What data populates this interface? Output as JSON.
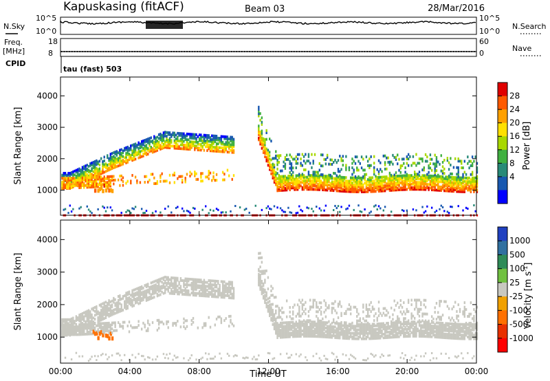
{
  "header": {
    "station": "Kapuskasing (fitACF)",
    "beam": "Beam 03",
    "date": "28/Mar/2016"
  },
  "noise_panel": {
    "left_label": "N.Sky",
    "left_ticks": [
      "10^5",
      "10^0"
    ],
    "right_ticks": [
      "10^5",
      "10^0"
    ],
    "right_label": "N.Search"
  },
  "freq_panel": {
    "left_label_1": "Freq.",
    "left_label_2": "[MHz]",
    "left_ticks": [
      "18",
      "8"
    ],
    "right_ticks": [
      "60",
      "0"
    ],
    "right_label": "Nave",
    "cpid_label": "CPID",
    "cpid_value": "tau (fast) 503"
  },
  "chart_data": [
    {
      "type": "heatmap",
      "name": "power",
      "ylabel": "Slant Range [km]",
      "yticks": [
        1000,
        2000,
        3000,
        4000
      ],
      "xlabels": [
        "00:00",
        "04:00",
        "08:00",
        "12:00",
        "16:00",
        "20:00",
        "00:00"
      ],
      "x_hours": [
        0,
        4,
        8,
        12,
        16,
        20,
        24
      ],
      "ylim": [
        200,
        4600
      ],
      "colorbar": {
        "label": "Power [dB]",
        "ticks": [
          "28",
          "24",
          "20",
          "16",
          "12",
          "8",
          "4"
        ],
        "colors": [
          "#e00000",
          "#ff5a00",
          "#ffa000",
          "#ffe000",
          "#a8d800",
          "#40b040",
          "#288a78",
          "#1858b0",
          "#0000ff"
        ]
      }
    },
    {
      "type": "heatmap",
      "name": "velocity",
      "ylabel": "Slant Range [km]",
      "yticks": [
        1000,
        2000,
        3000,
        4000
      ],
      "xlabels": [
        "00:00",
        "04:00",
        "08:00",
        "12:00",
        "16:00",
        "20:00",
        "00:00"
      ],
      "x_hours": [
        0,
        4,
        8,
        12,
        16,
        20,
        24
      ],
      "ylim": [
        200,
        4600
      ],
      "xlabel": "Time UT",
      "colorbar": {
        "label": "Velocity [m s",
        "label_sup": "-1",
        "label_end": "]",
        "ticks": [
          "1000",
          "500",
          "100",
          "25",
          "-25",
          "-100",
          "-500",
          "-1000"
        ],
        "colors": [
          "#2040c0",
          "#3070a0",
          "#2e8b57",
          "#70c040",
          "#c8c8c0",
          "#f0a000",
          "#ff7000",
          "#e83000",
          "#ff0000"
        ]
      }
    }
  ]
}
